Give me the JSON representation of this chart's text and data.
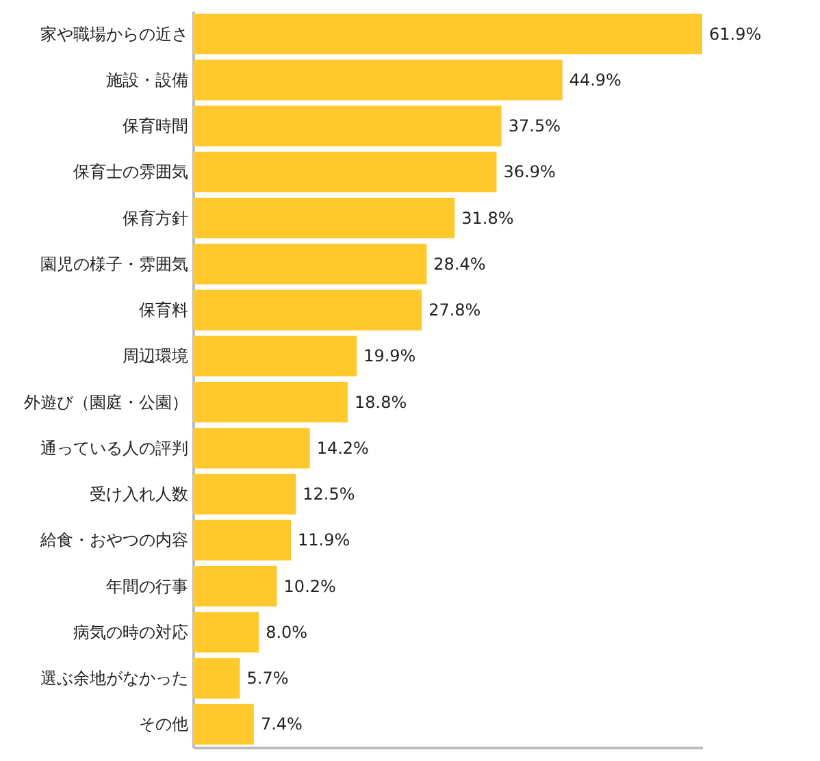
{
  "chart_data": {
    "type": "bar",
    "orientation": "horizontal",
    "categories": [
      "家や職場からの近さ",
      "施設・設備",
      "保育時間",
      "保育士の雰囲気",
      "保育方針",
      "園児の様子・雰囲気",
      "保育料",
      "周辺環境",
      "外遊び（園庭・公園）",
      "通っている人の評判",
      "受け入れ人数",
      "給食・おやつの内容",
      "年間の行事",
      "病気の時の対応",
      "選ぶ余地がなかった",
      "その他"
    ],
    "values": [
      61.9,
      44.9,
      37.5,
      36.9,
      31.8,
      28.4,
      27.8,
      19.9,
      18.8,
      14.2,
      12.5,
      11.9,
      10.2,
      8.0,
      5.7,
      7.4
    ],
    "value_labels": [
      "61.9%",
      "44.9%",
      "37.5%",
      "36.9%",
      "31.8%",
      "28.4%",
      "27.8%",
      "19.9%",
      "18.8%",
      "14.2%",
      "12.5%",
      "11.9%",
      "10.2%",
      "8.0%",
      "5.7%",
      "7.4%"
    ],
    "color": "#ffc82c"
  }
}
